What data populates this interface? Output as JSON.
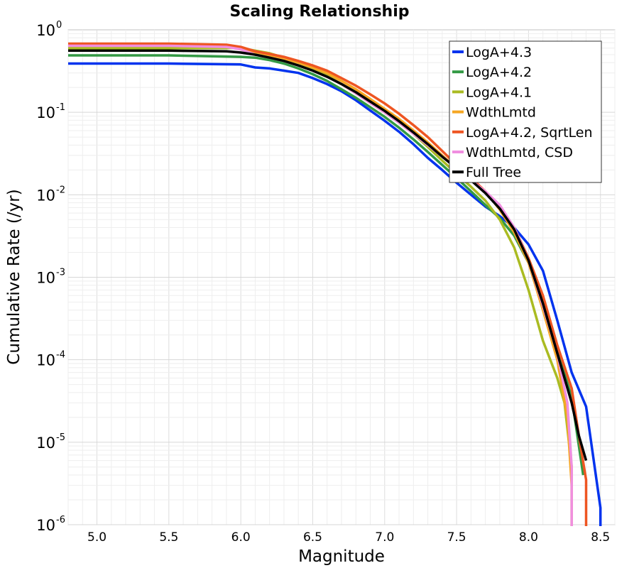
{
  "chart_data": {
    "type": "line",
    "title": "Scaling Relationship",
    "xlabel": "Magnitude",
    "ylabel": "Cumulative Rate (/yr)",
    "xlim": [
      4.8,
      8.6
    ],
    "ylim": [
      1e-06,
      1
    ],
    "yscale": "log",
    "grid": true,
    "legend_position": "top-right",
    "x_ticks": [
      5.0,
      5.5,
      6.0,
      6.5,
      7.0,
      7.5,
      8.0,
      8.5
    ],
    "x_tick_labels": [
      "5.0",
      "5.5",
      "6.0",
      "6.5",
      "7.0",
      "7.5",
      "8.0",
      "8.5"
    ],
    "y_ticks": [
      {
        "base": "10",
        "exp": "-6"
      },
      {
        "base": "10",
        "exp": "-5"
      },
      {
        "base": "10",
        "exp": "-4"
      },
      {
        "base": "10",
        "exp": "-3"
      },
      {
        "base": "10",
        "exp": "-2"
      },
      {
        "base": "10",
        "exp": "-1"
      },
      {
        "base": "10",
        "exp": "0"
      }
    ],
    "series": [
      {
        "name": "LogA+4.3",
        "color": "#0033ee",
        "points": [
          [
            4.8,
            0.39
          ],
          [
            5.5,
            0.39
          ],
          [
            6.0,
            0.38
          ],
          [
            6.1,
            0.35
          ],
          [
            6.2,
            0.34
          ],
          [
            6.3,
            0.32
          ],
          [
            6.4,
            0.3
          ],
          [
            6.5,
            0.26
          ],
          [
            6.6,
            0.22
          ],
          [
            6.7,
            0.18
          ],
          [
            6.8,
            0.14
          ],
          [
            6.9,
            0.105
          ],
          [
            7.0,
            0.079
          ],
          [
            7.1,
            0.058
          ],
          [
            7.2,
            0.041
          ],
          [
            7.3,
            0.028
          ],
          [
            7.4,
            0.02
          ],
          [
            7.5,
            0.014
          ],
          [
            7.6,
            0.01
          ],
          [
            7.7,
            0.0072
          ],
          [
            7.8,
            0.0055
          ],
          [
            7.9,
            0.004
          ],
          [
            8.0,
            0.0025
          ],
          [
            8.1,
            0.0012
          ],
          [
            8.2,
            0.0003
          ],
          [
            8.3,
            7e-05
          ],
          [
            8.4,
            2.7e-05
          ],
          [
            8.5,
            1.6e-06
          ],
          [
            8.5,
            9e-07
          ]
        ]
      },
      {
        "name": "LogA+4.2",
        "color": "#339944",
        "points": [
          [
            4.8,
            0.49
          ],
          [
            5.5,
            0.49
          ],
          [
            6.0,
            0.47
          ],
          [
            6.1,
            0.46
          ],
          [
            6.2,
            0.43
          ],
          [
            6.3,
            0.39
          ],
          [
            6.4,
            0.34
          ],
          [
            6.5,
            0.29
          ],
          [
            6.6,
            0.24
          ],
          [
            6.7,
            0.19
          ],
          [
            6.8,
            0.15
          ],
          [
            6.9,
            0.115
          ],
          [
            7.0,
            0.088
          ],
          [
            7.1,
            0.065
          ],
          [
            7.2,
            0.047
          ],
          [
            7.3,
            0.033
          ],
          [
            7.4,
            0.023
          ],
          [
            7.5,
            0.016
          ],
          [
            7.6,
            0.011
          ],
          [
            7.7,
            0.0075
          ],
          [
            7.8,
            0.0052
          ],
          [
            7.9,
            0.0032
          ],
          [
            8.0,
            0.0015
          ],
          [
            8.1,
            0.0005
          ],
          [
            8.2,
            0.00013
          ],
          [
            8.3,
            3.5e-05
          ],
          [
            8.38,
            4e-06
          ]
        ]
      },
      {
        "name": "LogA+4.1",
        "color": "#aabb22",
        "points": [
          [
            4.8,
            0.6
          ],
          [
            5.5,
            0.6
          ],
          [
            5.9,
            0.6
          ],
          [
            6.0,
            0.6
          ],
          [
            6.1,
            0.56
          ],
          [
            6.2,
            0.52
          ],
          [
            6.3,
            0.46
          ],
          [
            6.4,
            0.4
          ],
          [
            6.5,
            0.34
          ],
          [
            6.6,
            0.28
          ],
          [
            6.7,
            0.22
          ],
          [
            6.8,
            0.17
          ],
          [
            6.9,
            0.13
          ],
          [
            7.0,
            0.1
          ],
          [
            7.1,
            0.075
          ],
          [
            7.2,
            0.055
          ],
          [
            7.3,
            0.038
          ],
          [
            7.4,
            0.026
          ],
          [
            7.5,
            0.018
          ],
          [
            7.6,
            0.0125
          ],
          [
            7.7,
            0.0085
          ],
          [
            7.8,
            0.005
          ],
          [
            7.9,
            0.0023
          ],
          [
            8.0,
            0.0007
          ],
          [
            8.1,
            0.00017
          ],
          [
            8.2,
            6e-05
          ],
          [
            8.25,
            3e-05
          ],
          [
            8.3,
            5e-06
          ],
          [
            8.3,
            9e-07
          ]
        ]
      },
      {
        "name": "WdthLmtd",
        "color": "#f5a623",
        "points": [
          [
            4.8,
            0.66
          ],
          [
            5.5,
            0.66
          ],
          [
            5.9,
            0.64
          ],
          [
            6.0,
            0.6
          ],
          [
            6.1,
            0.52
          ],
          [
            6.2,
            0.48
          ],
          [
            6.3,
            0.44
          ],
          [
            6.4,
            0.4
          ],
          [
            6.5,
            0.35
          ],
          [
            6.6,
            0.3
          ],
          [
            6.7,
            0.24
          ],
          [
            6.8,
            0.19
          ],
          [
            6.9,
            0.145
          ],
          [
            7.0,
            0.11
          ],
          [
            7.1,
            0.083
          ],
          [
            7.2,
            0.06
          ],
          [
            7.3,
            0.043
          ],
          [
            7.4,
            0.03
          ],
          [
            7.5,
            0.021
          ],
          [
            7.6,
            0.015
          ],
          [
            7.7,
            0.011
          ],
          [
            7.8,
            0.0066
          ],
          [
            7.9,
            0.0035
          ],
          [
            8.0,
            0.0015
          ],
          [
            8.1,
            0.0004
          ],
          [
            8.2,
            0.0001
          ],
          [
            8.27,
            2e-05
          ],
          [
            8.3,
            3e-06
          ],
          [
            8.3,
            9e-07
          ]
        ]
      },
      {
        "name": "LogA+4.2, SqrtLen",
        "color": "#ee5522",
        "points": [
          [
            4.8,
            0.68
          ],
          [
            5.5,
            0.68
          ],
          [
            5.9,
            0.66
          ],
          [
            6.0,
            0.62
          ],
          [
            6.1,
            0.55
          ],
          [
            6.2,
            0.51
          ],
          [
            6.3,
            0.47
          ],
          [
            6.4,
            0.42
          ],
          [
            6.5,
            0.37
          ],
          [
            6.6,
            0.32
          ],
          [
            6.7,
            0.26
          ],
          [
            6.8,
            0.21
          ],
          [
            6.9,
            0.165
          ],
          [
            7.0,
            0.128
          ],
          [
            7.1,
            0.096
          ],
          [
            7.2,
            0.07
          ],
          [
            7.3,
            0.05
          ],
          [
            7.4,
            0.034
          ],
          [
            7.5,
            0.023
          ],
          [
            7.6,
            0.016
          ],
          [
            7.7,
            0.011
          ],
          [
            7.8,
            0.007
          ],
          [
            7.9,
            0.004
          ],
          [
            8.0,
            0.0017
          ],
          [
            8.1,
            0.0006
          ],
          [
            8.2,
            0.00015
          ],
          [
            8.3,
            4.5e-05
          ],
          [
            8.35,
            1.2e-05
          ],
          [
            8.4,
            3.5e-06
          ],
          [
            8.4,
            9e-07
          ]
        ]
      },
      {
        "name": "WdthLmtd, CSD",
        "color": "#f08ee0",
        "points": [
          [
            4.8,
            0.64
          ],
          [
            5.5,
            0.64
          ],
          [
            5.9,
            0.62
          ],
          [
            6.0,
            0.58
          ],
          [
            6.1,
            0.5
          ],
          [
            6.2,
            0.46
          ],
          [
            6.3,
            0.42
          ],
          [
            6.4,
            0.37
          ],
          [
            6.5,
            0.32
          ],
          [
            6.6,
            0.27
          ],
          [
            6.7,
            0.22
          ],
          [
            6.8,
            0.17
          ],
          [
            6.9,
            0.13
          ],
          [
            7.0,
            0.1
          ],
          [
            7.1,
            0.075
          ],
          [
            7.2,
            0.055
          ],
          [
            7.3,
            0.04
          ],
          [
            7.4,
            0.029
          ],
          [
            7.5,
            0.021
          ],
          [
            7.6,
            0.015
          ],
          [
            7.7,
            0.011
          ],
          [
            7.8,
            0.0075
          ],
          [
            7.9,
            0.004
          ],
          [
            8.0,
            0.0016
          ],
          [
            8.1,
            0.00045
          ],
          [
            8.2,
            0.00012
          ],
          [
            8.27,
            3e-05
          ],
          [
            8.3,
            5e-06
          ],
          [
            8.3,
            9e-07
          ]
        ]
      },
      {
        "name": "Full Tree",
        "color": "#000000",
        "points": [
          [
            4.8,
            0.56
          ],
          [
            5.5,
            0.56
          ],
          [
            5.9,
            0.55
          ],
          [
            6.0,
            0.53
          ],
          [
            6.1,
            0.5
          ],
          [
            6.2,
            0.46
          ],
          [
            6.3,
            0.42
          ],
          [
            6.4,
            0.37
          ],
          [
            6.5,
            0.32
          ],
          [
            6.6,
            0.27
          ],
          [
            6.7,
            0.22
          ],
          [
            6.8,
            0.175
          ],
          [
            6.9,
            0.135
          ],
          [
            7.0,
            0.104
          ],
          [
            7.1,
            0.078
          ],
          [
            7.2,
            0.057
          ],
          [
            7.3,
            0.041
          ],
          [
            7.4,
            0.029
          ],
          [
            7.5,
            0.021
          ],
          [
            7.6,
            0.015
          ],
          [
            7.7,
            0.0105
          ],
          [
            7.8,
            0.0068
          ],
          [
            7.9,
            0.0038
          ],
          [
            8.0,
            0.0016
          ],
          [
            8.1,
            0.00048
          ],
          [
            8.2,
            0.00012
          ],
          [
            8.3,
            3e-05
          ],
          [
            8.35,
            1.2e-05
          ],
          [
            8.4,
            6e-06
          ]
        ]
      }
    ]
  },
  "legend": {
    "items": [
      "LogA+4.3",
      "LogA+4.2",
      "LogA+4.1",
      "WdthLmtd",
      "LogA+4.2, SqrtLen",
      "WdthLmtd, CSD",
      "Full Tree"
    ]
  }
}
